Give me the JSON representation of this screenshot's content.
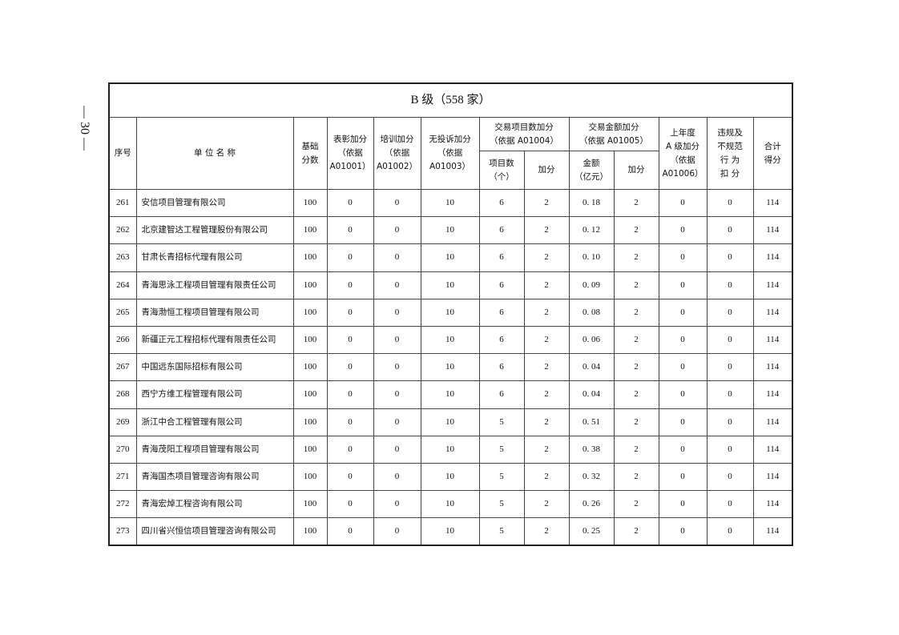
{
  "page_number": "— 30 —",
  "table": {
    "title": "B 级（558 家）",
    "headers": {
      "index": "序号",
      "name": "单 位 名 称",
      "base": "基础\n分数",
      "commend": "表彰加分\n（依据\nA01001）",
      "training": "培训加分\n（依据\nA01002）",
      "no_complaint": "无投诉加分\n（依据\nA01003）",
      "trade_count_group": "交易项目数加分\n（依据 A01004）",
      "trade_count": "项目数\n（个）",
      "trade_count_bonus": "加分",
      "trade_amount_group": "交易金额加分\n（依据 A01005）",
      "trade_amount": "金额\n（亿元）",
      "trade_amount_bonus": "加分",
      "last_year_a": "上年度\nA 级加分\n（依据\nA01006）",
      "violation": "违规及\n不规范\n行 为\n扣 分",
      "total": "合计\n得分"
    },
    "rows": [
      [
        "261",
        "安信项目管理有限公司",
        "100",
        "0",
        "0",
        "10",
        "6",
        "2",
        "0. 18",
        "2",
        "0",
        "0",
        "114"
      ],
      [
        "262",
        "北京建智达工程管理股份有限公司",
        "100",
        "0",
        "0",
        "10",
        "6",
        "2",
        "0. 12",
        "2",
        "0",
        "0",
        "114"
      ],
      [
        "263",
        "甘肃长青招标代理有限公司",
        "100",
        "0",
        "0",
        "10",
        "6",
        "2",
        "0. 10",
        "2",
        "0",
        "0",
        "114"
      ],
      [
        "264",
        "青海思泳工程项目管理有限责任公司",
        "100",
        "0",
        "0",
        "10",
        "6",
        "2",
        "0. 09",
        "2",
        "0",
        "0",
        "114"
      ],
      [
        "265",
        "青海渤恒工程项目管理有限公司",
        "100",
        "0",
        "0",
        "10",
        "6",
        "2",
        "0. 08",
        "2",
        "0",
        "0",
        "114"
      ],
      [
        "266",
        "新疆正元工程招标代理有限责任公司",
        "100",
        "0",
        "0",
        "10",
        "6",
        "2",
        "0. 06",
        "2",
        "0",
        "0",
        "114"
      ],
      [
        "267",
        "中国远东国际招标有限公司",
        "100",
        "0",
        "0",
        "10",
        "6",
        "2",
        "0. 04",
        "2",
        "0",
        "0",
        "114"
      ],
      [
        "268",
        "西宁方维工程管理有限公司",
        "100",
        "0",
        "0",
        "10",
        "6",
        "2",
        "0. 04",
        "2",
        "0",
        "0",
        "114"
      ],
      [
        "269",
        "浙江中合工程管理有限公司",
        "100",
        "0",
        "0",
        "10",
        "5",
        "2",
        "0. 51",
        "2",
        "0",
        "0",
        "114"
      ],
      [
        "270",
        "青海茂阳工程项目管理有限公司",
        "100",
        "0",
        "0",
        "10",
        "5",
        "2",
        "0. 38",
        "2",
        "0",
        "0",
        "114"
      ],
      [
        "271",
        "青海国杰项目管理咨询有限公司",
        "100",
        "0",
        "0",
        "10",
        "5",
        "2",
        "0. 32",
        "2",
        "0",
        "0",
        "114"
      ],
      [
        "272",
        "青海宏焯工程咨询有限公司",
        "100",
        "0",
        "0",
        "10",
        "5",
        "2",
        "0. 26",
        "2",
        "0",
        "0",
        "114"
      ],
      [
        "273",
        "四川省兴恒信项目管理咨询有限公司",
        "100",
        "0",
        "0",
        "10",
        "5",
        "2",
        "0. 25",
        "2",
        "0",
        "0",
        "114"
      ]
    ]
  }
}
